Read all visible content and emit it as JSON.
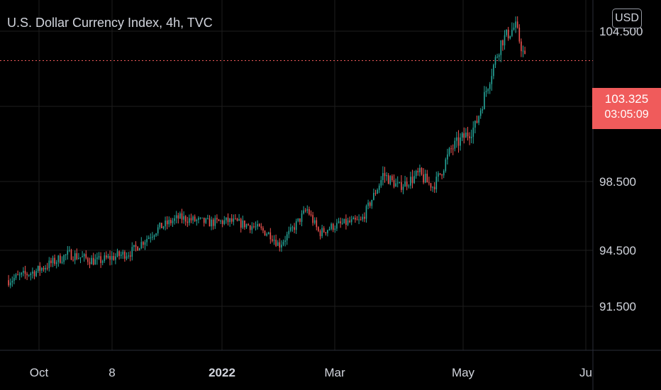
{
  "header": {
    "title": "U.S. Dollar Currency Index, 4h, TVC",
    "currency_button": "USD"
  },
  "price_tag": {
    "price": "103.325",
    "countdown": "03:05:09"
  },
  "colors": {
    "up": "#26a69a",
    "down": "#ef5350",
    "price_line": "#f05b5b",
    "grid": "#1e1e1e",
    "axis_text": "#d1d4dc"
  },
  "chart_data": {
    "type": "line",
    "title": "U.S. Dollar Currency Index, 4h, TVC",
    "candle_style": "candlestick",
    "current_price": 103.325,
    "grid": true,
    "y_axis_side": "right",
    "ytick_labels": [
      "91.500",
      "94.500",
      "98.500",
      "104.500"
    ],
    "yticks": [
      91.5,
      94.5,
      98.5,
      104.5
    ],
    "xtick_labels": [
      "Oct",
      "8",
      "2022",
      "Mar",
      "May",
      "Ju"
    ],
    "xtick_bold": [
      false,
      false,
      true,
      false,
      false,
      false
    ],
    "series": [
      {
        "x": [
          "2021-09-01",
          "2021-09-15",
          "2021-10-01",
          "2021-10-15",
          "2021-11-01",
          "2021-11-15",
          "2021-11-25",
          "2021-12-10",
          "2021-12-20",
          "2022-01-01",
          "2022-01-10",
          "2022-01-14",
          "2022-01-20",
          "2022-01-28",
          "2022-02-03",
          "2022-02-10",
          "2022-02-17",
          "2022-02-24",
          "2022-03-07",
          "2022-03-15",
          "2022-03-25",
          "2022-04-01",
          "2022-04-10",
          "2022-04-22",
          "2022-05-01",
          "2022-05-05",
          "2022-05-12",
          "2022-05-17"
        ],
        "values": [
          92.9,
          93.4,
          94.3,
          93.9,
          94.4,
          95.8,
          96.4,
          96.1,
          96.2,
          95.9,
          95.4,
          94.8,
          95.6,
          96.9,
          95.5,
          95.9,
          96.1,
          96.2,
          98.8,
          98.2,
          98.8,
          98.2,
          99.8,
          100.7,
          103.1,
          104.1,
          104.7,
          103.325
        ]
      }
    ],
    "xlim": [
      "2021-08-28",
      "2022-06-20"
    ],
    "ylim": [
      90.0,
      104.6
    ]
  }
}
